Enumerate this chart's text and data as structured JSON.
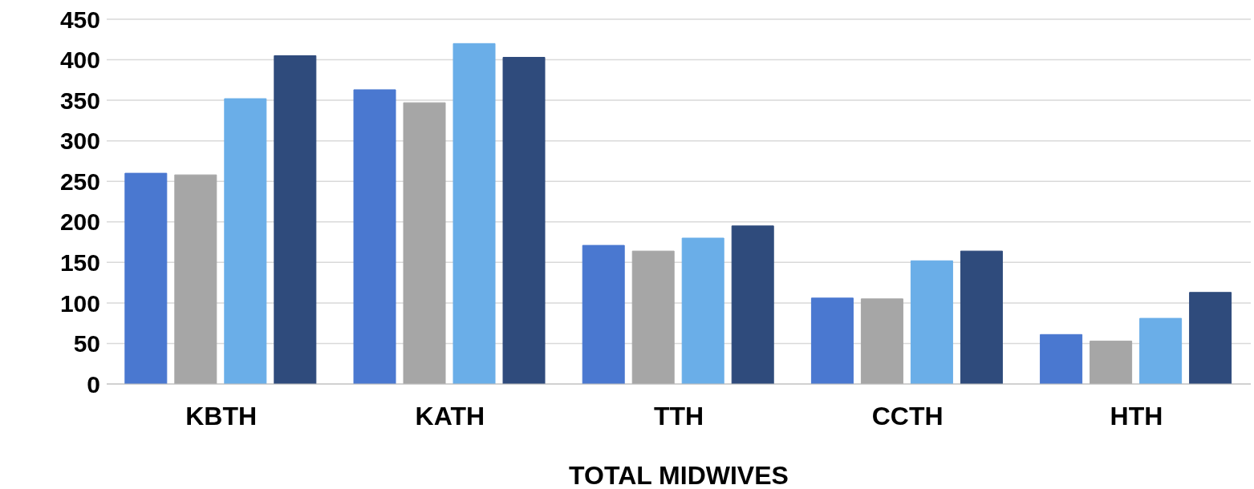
{
  "chart_data": {
    "type": "bar",
    "xlabel": "TOTAL MIDWIVES",
    "categories": [
      "KBTH",
      "KATH",
      "TTH",
      "CCTH",
      "HTH"
    ],
    "series": [
      {
        "color": "#4a78d0",
        "values": [
          260,
          363,
          171,
          106,
          61
        ]
      },
      {
        "color": "#a6a6a6",
        "values": [
          258,
          347,
          164,
          105,
          53
        ]
      },
      {
        "color": "#6aaee8",
        "values": [
          352,
          420,
          180,
          152,
          81
        ]
      },
      {
        "color": "#2f4b7c",
        "values": [
          405,
          403,
          195,
          164,
          113
        ]
      }
    ],
    "ylim": [
      0,
      450
    ],
    "yticks": [
      0,
      50,
      100,
      150,
      200,
      250,
      300,
      350,
      400,
      450
    ],
    "grid": "y",
    "legend": false
  }
}
